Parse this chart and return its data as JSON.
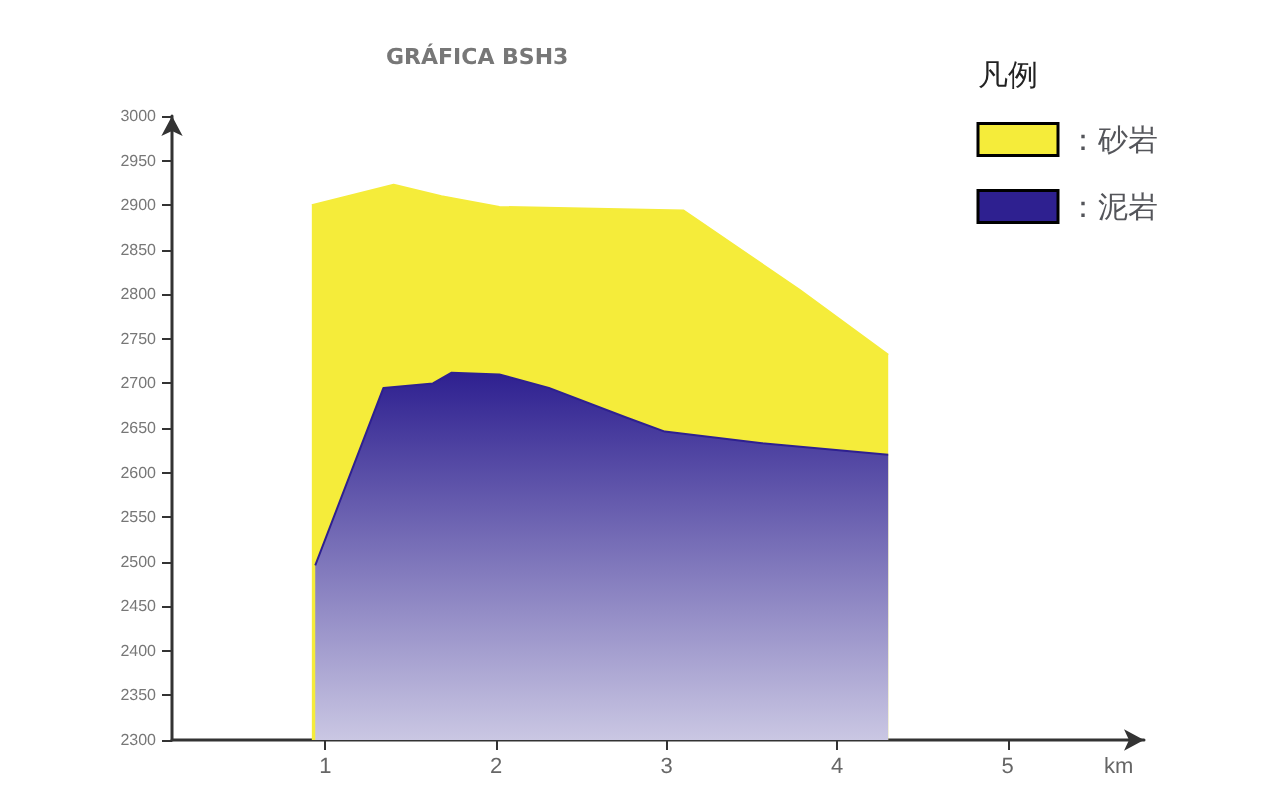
{
  "chart_data": {
    "type": "area",
    "title": "GRÁFICA BSH3",
    "xlabel": "km",
    "legend_title": "凡例",
    "legend": "top right",
    "grid": false,
    "marker": "none",
    "xlim": [
      0.1,
      5.8
    ],
    "xticks": [
      1,
      2,
      3,
      4,
      5
    ],
    "ylim": [
      2300,
      3000
    ],
    "yticks": [
      2300,
      2350,
      2400,
      2450,
      2500,
      2550,
      2600,
      2650,
      2700,
      2750,
      2800,
      2850,
      2900,
      2950,
      3000
    ],
    "series": [
      {
        "name": "：砂岩",
        "color": "#f5ec3a",
        "x": [
          0.92,
          1.4,
          1.68,
          2.02,
          3.1,
          3.78,
          4.3
        ],
        "values": [
          2900,
          2923,
          2910,
          2898,
          2894,
          2805,
          2732
        ]
      },
      {
        "name": "：泥岩",
        "color": "#2e2090",
        "x": [
          0.94,
          1.34,
          1.63,
          1.74,
          2.02,
          2.31,
          2.76,
          2.99,
          3.56,
          4.3
        ],
        "values": [
          2496,
          2695,
          2700,
          2712,
          2710,
          2695,
          2662,
          2646,
          2633,
          2620
        ]
      }
    ]
  }
}
